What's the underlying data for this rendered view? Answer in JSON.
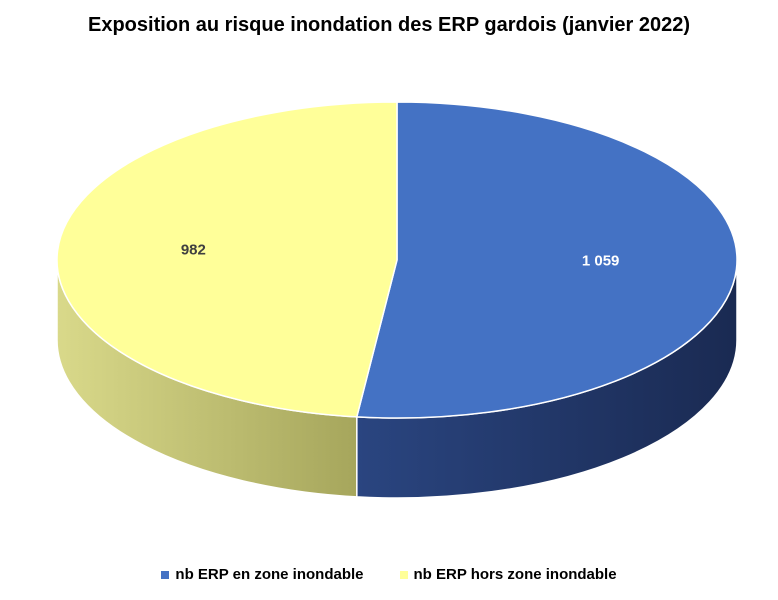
{
  "chart_data": {
    "type": "pie",
    "title": "Exposition au risque inondation des ERP gardois (janvier 2022)",
    "series": [
      {
        "name": "nb ERP en zone inondable",
        "value": 1059,
        "label": "1 059",
        "color": "#4472C4"
      },
      {
        "name": "nb ERP hors zone inondable",
        "value": 982,
        "label": "982",
        "color": "#FFFF99"
      }
    ],
    "legend_position": "bottom",
    "style": "3d"
  }
}
